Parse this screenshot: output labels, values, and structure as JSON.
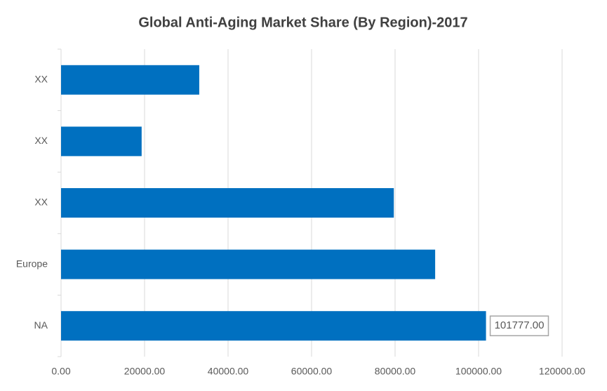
{
  "chart_data": {
    "type": "bar",
    "orientation": "horizontal",
    "title": "Global Anti-Aging Market Share (By Region)-2017",
    "categories": [
      "NA",
      "Europe",
      "XX",
      "XX",
      "XX"
    ],
    "values": [
      101777,
      89600,
      79700,
      19300,
      33100
    ],
    "value_labels": [
      "101777.00",
      null,
      null,
      null,
      null
    ],
    "color": "#0070c0",
    "xlim": [
      0,
      120000
    ],
    "xticks": [
      {
        "value": 0,
        "label": "0.00"
      },
      {
        "value": 20000,
        "label": "20000.00"
      },
      {
        "value": 40000,
        "label": "40000.00"
      },
      {
        "value": 60000,
        "label": "60000.00"
      },
      {
        "value": 80000,
        "label": "80000.00"
      },
      {
        "value": 100000,
        "label": "100000.00"
      },
      {
        "value": 120000,
        "label": "120000.00"
      }
    ],
    "grid": true
  }
}
